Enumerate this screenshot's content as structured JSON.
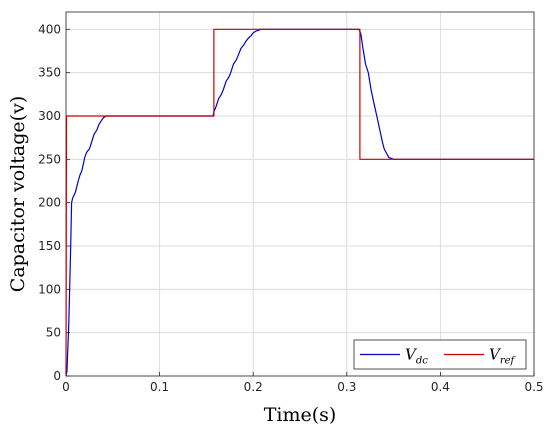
{
  "chart_data": {
    "type": "line",
    "title": "",
    "xlabel": "Time(s)",
    "ylabel": "Capacitor voltage(v)",
    "xlim": [
      0,
      0.5
    ],
    "ylim": [
      0,
      420
    ],
    "xticks": [
      "0",
      "0.1",
      "0.2",
      "0.3",
      "0.4",
      "0.5"
    ],
    "yticks": [
      "0",
      "50",
      "100",
      "150",
      "200",
      "250",
      "300",
      "350",
      "400"
    ],
    "grid": true,
    "legend_position": "bottom-right",
    "series": [
      {
        "name": "V",
        "name_subscript": "dc",
        "color": "#0000cc",
        "x": [
          0,
          0.001,
          0.003,
          0.005,
          0.006,
          0.007,
          0.01,
          0.013,
          0.015,
          0.017,
          0.02,
          0.022,
          0.025,
          0.028,
          0.03,
          0.033,
          0.035,
          0.038,
          0.04,
          0.043,
          0.045,
          0.05,
          0.1,
          0.157,
          0.158,
          0.16,
          0.163,
          0.166,
          0.168,
          0.171,
          0.174,
          0.176,
          0.179,
          0.182,
          0.184,
          0.187,
          0.19,
          0.192,
          0.195,
          0.198,
          0.2,
          0.203,
          0.206,
          0.208,
          0.21,
          0.213,
          0.25,
          0.3,
          0.313,
          0.315,
          0.317,
          0.32,
          0.323,
          0.326,
          0.329,
          0.332,
          0.335,
          0.338,
          0.34,
          0.343,
          0.345,
          0.348,
          0.35,
          0.4,
          0.5
        ],
        "y": [
          0,
          5,
          60,
          150,
          200,
          205,
          212,
          225,
          232,
          237,
          252,
          258,
          262,
          272,
          279,
          284,
          290,
          295,
          298,
          300,
          300,
          300,
          300,
          300,
          305,
          310,
          320,
          325,
          330,
          340,
          345,
          350,
          360,
          365,
          370,
          378,
          382,
          386,
          390,
          393,
          396,
          398,
          399,
          400,
          400,
          400,
          400,
          400,
          400,
          395,
          380,
          360,
          350,
          330,
          315,
          300,
          285,
          270,
          262,
          256,
          252,
          251,
          250,
          250,
          250
        ]
      },
      {
        "name": "V",
        "name_subscript": "ref",
        "color": "#cc0000",
        "x": [
          0,
          0.0005,
          0.158,
          0.158,
          0.314,
          0.314,
          0.5
        ],
        "y": [
          0,
          300,
          300,
          400,
          400,
          250,
          250
        ]
      }
    ]
  }
}
